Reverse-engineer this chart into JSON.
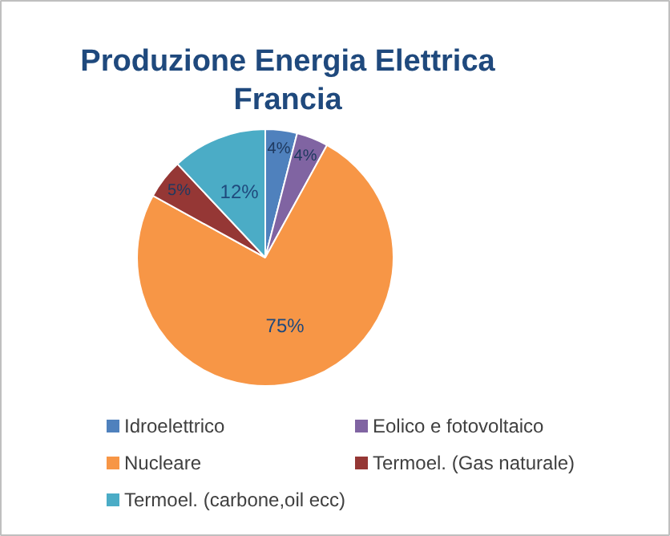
{
  "chart_data": {
    "type": "pie",
    "title": "Produzione Energia Elettrica Francia",
    "categories": [
      "Idroelettrico",
      "Eolico e fotovoltaico",
      "Nucleare",
      "Termoel. (Gas naturale)",
      "Termoel. (carbone,oil ecc)"
    ],
    "values": [
      4,
      4,
      75,
      5,
      12
    ],
    "colors": [
      "#4f81bd",
      "#8064a2",
      "#f79646",
      "#953735",
      "#4bacc6"
    ],
    "value_labels": [
      "4%",
      "4%",
      "75%",
      "5%",
      "12%"
    ],
    "legend": "bottom"
  }
}
